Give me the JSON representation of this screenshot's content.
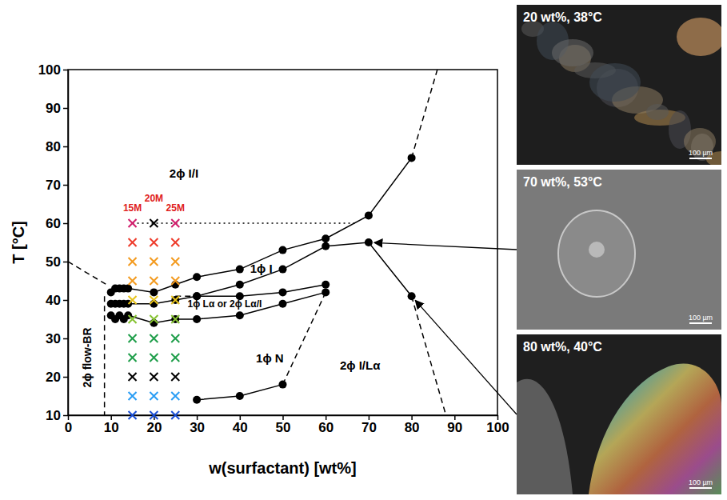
{
  "chart_data": {
    "type": "scatter",
    "x_label": "w(surfactant) [wt%]",
    "y_label": "T [°C]",
    "xlim": [
      0,
      100
    ],
    "ylim": [
      10,
      100
    ],
    "xticks": [
      0,
      10,
      20,
      30,
      40,
      50,
      60,
      70,
      80,
      90,
      100
    ],
    "yticks": [
      10,
      20,
      30,
      40,
      50,
      60,
      70,
      80,
      90,
      100
    ],
    "series": [
      {
        "type": "line",
        "color": "#000000",
        "marker": "circle",
        "line_style": "solid",
        "x": [
          10,
          11,
          12,
          13,
          14,
          20,
          25,
          30,
          40,
          50,
          60,
          70,
          80
        ],
        "values": [
          42,
          43,
          43,
          43,
          43,
          42,
          44,
          46,
          48,
          53,
          56,
          62,
          77
        ]
      },
      {
        "type": "line",
        "color": "#000000",
        "marker": "circle",
        "line_style": "solid",
        "x": [
          10,
          11,
          12,
          13,
          14,
          20,
          25,
          30,
          40,
          50,
          60,
          70,
          80
        ],
        "values": [
          39,
          39,
          39,
          39,
          39,
          39,
          40,
          41,
          44,
          48,
          54,
          55,
          41
        ]
      },
      {
        "type": "line",
        "color": "#000000",
        "marker": "circle",
        "line_style": "solid",
        "x": [
          30,
          40,
          50,
          60
        ],
        "values": [
          41,
          41,
          42,
          44
        ]
      },
      {
        "type": "line",
        "color": "#000000",
        "marker": "circle",
        "line_style": "solid",
        "x": [
          10,
          11,
          12,
          13,
          14,
          20,
          25,
          30,
          40,
          50,
          60
        ],
        "values": [
          36,
          35,
          36,
          35,
          36,
          34,
          35,
          35,
          36,
          39,
          42
        ]
      },
      {
        "type": "line",
        "color": "#000000",
        "marker": "circle",
        "line_style": "solid",
        "x": [
          30,
          40,
          50
        ],
        "values": [
          14,
          15,
          18
        ]
      },
      {
        "type": "line",
        "color": "#000000",
        "marker": "none",
        "line_style": "dashed",
        "x": [
          0,
          9
        ],
        "values": [
          50,
          44
        ]
      },
      {
        "type": "line",
        "color": "#000000",
        "marker": "none",
        "line_style": "dashed",
        "x": [
          8.5,
          8.5
        ],
        "values": [
          41,
          10
        ]
      },
      {
        "type": "line",
        "color": "#000000",
        "marker": "none",
        "line_style": "dashed",
        "x": [
          25,
          30
        ],
        "values": [
          41,
          41
        ]
      },
      {
        "type": "line",
        "color": "#000000",
        "marker": "none",
        "line_style": "dashed",
        "x": [
          50,
          60
        ],
        "values": [
          18,
          42
        ]
      },
      {
        "type": "line",
        "color": "#000000",
        "marker": "none",
        "line_style": "dashed",
        "x": [
          80,
          88
        ],
        "values": [
          41,
          10
        ]
      },
      {
        "type": "line",
        "color": "#000000",
        "marker": "none",
        "line_style": "dashed",
        "x": [
          80,
          86
        ],
        "values": [
          77,
          100
        ]
      },
      {
        "type": "line",
        "color": "#000000",
        "marker": "none",
        "line_style": "dotted",
        "x": [
          15,
          67
        ],
        "values": [
          60,
          60
        ]
      },
      {
        "type": "scatter",
        "marker": "cross",
        "x": [
          15,
          15,
          15,
          15,
          15,
          15,
          15,
          15,
          15,
          15,
          15
        ],
        "values": [
          10,
          15,
          20,
          25,
          30,
          35,
          40,
          45,
          50,
          55,
          60
        ],
        "colors": [
          "#1a4fd6",
          "#2a9df4",
          "#000000",
          "#1f9e4a",
          "#1f9e4a",
          "#86c232",
          "#e6c21a",
          "#f39a1e",
          "#f39a1e",
          "#ee3b2b",
          "#d21e6c"
        ]
      },
      {
        "type": "scatter",
        "marker": "cross",
        "x": [
          20,
          20,
          20,
          20,
          20,
          20,
          20,
          20,
          20,
          20,
          20
        ],
        "values": [
          10,
          15,
          20,
          25,
          30,
          35,
          40,
          45,
          50,
          55,
          60
        ],
        "colors": [
          "#1a4fd6",
          "#2a9df4",
          "#000000",
          "#1f9e4a",
          "#1f9e4a",
          "#86c232",
          "#e6c21a",
          "#f39a1e",
          "#f39a1e",
          "#ee3b2b",
          "#000000"
        ]
      },
      {
        "type": "scatter",
        "marker": "cross",
        "x": [
          25,
          25,
          25,
          25,
          25,
          25,
          25,
          25,
          25,
          25,
          25
        ],
        "values": [
          10,
          15,
          20,
          25,
          30,
          35,
          40,
          45,
          50,
          55,
          60
        ],
        "colors": [
          "#1a4fd6",
          "#2a9df4",
          "#000000",
          "#1f9e4a",
          "#1f9e4a",
          "#86c232",
          "#e6c21a",
          "#f39a1e",
          "#f39a1e",
          "#ee3b2b",
          "#d21e6c"
        ]
      }
    ],
    "annotations": [
      {
        "text": "2ϕ I/I",
        "x": 27,
        "y": 73,
        "color": "#000000"
      },
      {
        "text": "1ϕ I",
        "x": 45,
        "y": 48.3,
        "color": "#000000"
      },
      {
        "text": "1ϕ Lα or 2ϕ Lα/I",
        "x": 36.5,
        "y": 39,
        "color": "#000000"
      },
      {
        "text": "1ϕ N",
        "x": 47,
        "y": 25,
        "color": "#000000"
      },
      {
        "text": "2ϕ I/Lα",
        "x": 68,
        "y": 23,
        "color": "#000000"
      },
      {
        "text": "2ϕ flow-BR",
        "x": 4.5,
        "y": 25,
        "color": "#000000",
        "orientation": "vertical"
      },
      {
        "text": "15M",
        "x": 15,
        "y": 64,
        "color": "#e02020"
      },
      {
        "text": "20M",
        "x": 20,
        "y": 66.5,
        "color": "#e02020"
      },
      {
        "text": "25M",
        "x": 25,
        "y": 64,
        "color": "#e02020"
      }
    ],
    "insets": [
      {
        "title": "20 wt%, 38°C",
        "scale_bar": "100 µm"
      },
      {
        "title": "70 wt%, 53°C",
        "scale_bar": "100 µm",
        "points_to": {
          "x": 70,
          "y": 55
        }
      },
      {
        "title": "80 wt%, 40°C",
        "scale_bar": "100 µm",
        "points_to": {
          "x": 80,
          "y": 41
        }
      }
    ]
  }
}
